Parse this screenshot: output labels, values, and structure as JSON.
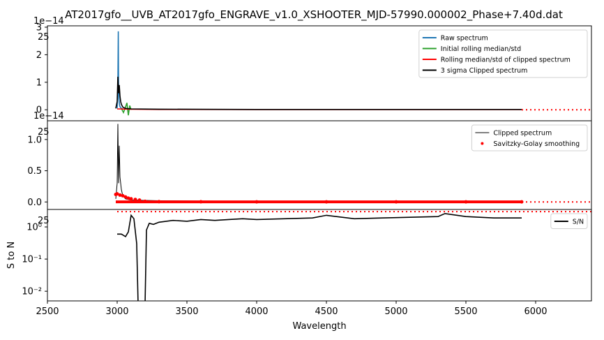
{
  "chart_data": [
    {
      "type": "line",
      "title": "AT2017gfo__UVB_AT2017gfo_ENGRAVE_v1.0_XSHOOTER_MJD-57990.000002_Phase+7.40d.dat",
      "offset_label": "1e−14",
      "xlim": [
        2500,
        6400
      ],
      "ylim": [
        -0.4,
        3.05
      ],
      "yticks": [
        0,
        1,
        2,
        3
      ],
      "legend_position": "top-right",
      "overflow_label": "25",
      "series": [
        {
          "name": "Raw spectrum",
          "color": "#1f77b4",
          "x": [
            3000,
            3005,
            3008,
            3010,
            3012,
            3015,
            3018,
            3022,
            3030,
            3040,
            3060
          ],
          "y": [
            0.05,
            0.9,
            2.85,
            0.8,
            0.4,
            0.25,
            0.15,
            0.1,
            0.05,
            0.03,
            0.02
          ]
        },
        {
          "name": "Initial rolling median/std",
          "color": "#2ca02c",
          "x": [
            3030,
            3045,
            3060,
            3070,
            3080,
            3090,
            3100
          ],
          "y": [
            0.05,
            -0.1,
            0.1,
            0.25,
            -0.2,
            0.15,
            0.0
          ]
        },
        {
          "name": "Rolling median/std of clipped spectrum",
          "color": "#ff0000",
          "x": [
            3000,
            3100,
            3300,
            3600,
            4000,
            4500,
            5000,
            5500,
            5900
          ],
          "y": [
            0.03,
            0.02,
            0.01,
            0.01,
            0.005,
            0.005,
            0.005,
            0.005,
            0.005
          ]
        },
        {
          "name": "3 sigma Clipped spectrum",
          "color": "#000000",
          "x": [
            2990,
            3000,
            3005,
            3010,
            3015,
            3020,
            3025,
            3030,
            3040,
            3060,
            3100,
            3300,
            3600,
            4000,
            4500,
            5000,
            5500,
            5900
          ],
          "y": [
            0.05,
            0.3,
            1.2,
            0.6,
            0.9,
            0.5,
            0.3,
            0.2,
            0.1,
            0.05,
            0.03,
            0.02,
            0.015,
            0.01,
            0.01,
            0.01,
            0.01,
            0.01
          ]
        }
      ],
      "dotted_line": {
        "color": "#ff0000",
        "x": [
          5900,
          6400
        ],
        "y": 0
      }
    },
    {
      "type": "line",
      "offset_label": "1e−14",
      "xlim": [
        2500,
        6400
      ],
      "ylim": [
        -0.12,
        1.3
      ],
      "yticks": [
        0.0,
        0.5,
        1.0
      ],
      "ytick_labels": [
        "0.0",
        "0.5",
        "1.0"
      ],
      "legend_position": "top-right",
      "overflow_label": "25",
      "series": [
        {
          "name": "Clipped spectrum",
          "color": "#000000",
          "style": "thin line",
          "x": [
            2990,
            3000,
            3005,
            3010,
            3015,
            3020,
            3025,
            3030,
            3040,
            3060,
            3100,
            3300,
            3600,
            4000,
            4500,
            5000,
            5500,
            5900
          ],
          "y": [
            0.05,
            0.3,
            1.25,
            0.3,
            0.9,
            0.4,
            0.3,
            0.2,
            0.1,
            0.05,
            0.03,
            0.02,
            0.015,
            0.01,
            0.01,
            0.01,
            0.01,
            0.01
          ]
        },
        {
          "name": "Savitzky-Golay smoothing",
          "color": "#ff0000",
          "style": "dots",
          "x": [
            2990,
            3000,
            3020,
            3040,
            3060,
            3080,
            3100,
            3130,
            3160,
            3200,
            3300,
            3600,
            4000,
            4500,
            5000,
            5500,
            5900
          ],
          "y": [
            0.12,
            0.13,
            0.11,
            0.1,
            0.08,
            0.06,
            0.05,
            0.04,
            0.03,
            0.01,
            0.005,
            0.003,
            0.002,
            0.002,
            0.002,
            0.002,
            0.002
          ]
        }
      ],
      "dotted_line": {
        "color": "#ff0000",
        "x": [
          5900,
          6400
        ],
        "y": 0
      }
    },
    {
      "type": "line",
      "xlim": [
        2500,
        6400
      ],
      "xticks": [
        2500,
        3000,
        3500,
        4000,
        4500,
        5000,
        5500,
        6000
      ],
      "xlabel": "Wavelength",
      "ylabel": "S to N",
      "yscale": "log",
      "ylim": [
        0.005,
        3.5
      ],
      "yticks": [
        0.01,
        0.1,
        1
      ],
      "ytick_labels": [
        "10⁻²",
        "10⁻¹",
        "10⁰"
      ],
      "legend_position": "top-right",
      "overflow_label": "25",
      "series": [
        {
          "name": "S/N",
          "color": "#000000",
          "x": [
            3000,
            3030,
            3060,
            3080,
            3100,
            3120,
            3140,
            3150,
            3160,
            3200,
            3210,
            3230,
            3260,
            3300,
            3400,
            3500,
            3600,
            3700,
            3800,
            3900,
            4000,
            4200,
            4400,
            4500,
            4700,
            4900,
            5100,
            5300,
            5350,
            5500,
            5700,
            5900
          ],
          "y": [
            0.6,
            0.6,
            0.5,
            0.7,
            2.3,
            1.8,
            0.3,
            0.004,
            0.004,
            0.004,
            0.8,
            1.3,
            1.2,
            1.4,
            1.6,
            1.5,
            1.7,
            1.6,
            1.7,
            1.8,
            1.7,
            1.8,
            1.9,
            2.3,
            1.8,
            1.9,
            2.0,
            2.1,
            2.6,
            2.1,
            1.9,
            1.9
          ]
        }
      ],
      "dotted_line": {
        "color": "#ff0000",
        "x": [
          3000,
          6400
        ],
        "y": 3.0
      }
    }
  ]
}
